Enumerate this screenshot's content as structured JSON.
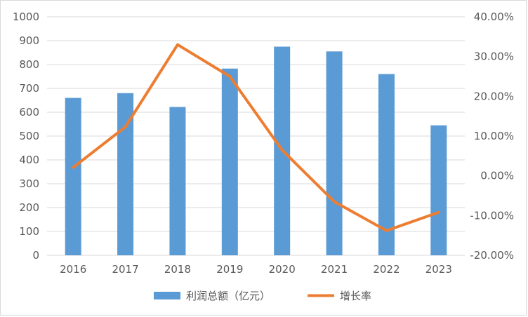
{
  "chart_data": {
    "type": "bar",
    "categories": [
      "2016",
      "2017",
      "2018",
      "2019",
      "2020",
      "2021",
      "2022",
      "2023"
    ],
    "series": [
      {
        "name": "利润总额（亿元）",
        "type": "bar",
        "axis": "left",
        "values": [
          660,
          680,
          622,
          783,
          875,
          855,
          760,
          545
        ]
      },
      {
        "name": "增长率",
        "type": "line",
        "axis": "right",
        "values": [
          0.021,
          0.123,
          0.33,
          0.25,
          0.065,
          -0.065,
          -0.138,
          -0.092
        ]
      }
    ],
    "y_left": {
      "min": 0,
      "max": 1000,
      "step": 100,
      "ticks": [
        "0",
        "100",
        "200",
        "300",
        "400",
        "500",
        "600",
        "700",
        "800",
        "900",
        "1000"
      ]
    },
    "y_right": {
      "min": -0.2,
      "max": 0.4,
      "step": 0.1,
      "ticks": [
        "-20.00%",
        "-10.00%",
        "0.00%",
        "10.00%",
        "20.00%",
        "30.00%",
        "40.00%"
      ]
    },
    "grid": true,
    "legend_position": "bottom",
    "colors": {
      "bar": "#5b9bd5",
      "line": "#ed7d31",
      "grid": "#d9d9d9",
      "text": "#595959"
    }
  }
}
